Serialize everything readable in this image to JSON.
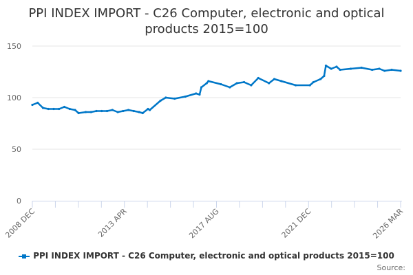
{
  "chart_data": {
    "type": "line",
    "title": "PPI INDEX IMPORT - C26 Computer, electronic and optical products 2015=100",
    "xlabel": "",
    "ylabel": "",
    "ylim": [
      0,
      150
    ],
    "yticks": [
      "0",
      "50",
      "100",
      "150"
    ],
    "xlim": [
      "2008-12",
      "2026-03"
    ],
    "xticks": [
      "2008 DEC",
      "2013 APR",
      "2017 AUG",
      "2021 DEC",
      "2026 MAR"
    ],
    "grid": true,
    "legend_position": "bottom",
    "color": "#0077c8",
    "series": [
      {
        "name": "PPI INDEX IMPORT - C26 Computer, electronic and optical products 2015=100",
        "x": [
          "2008-12",
          "2009-03",
          "2009-06",
          "2009-09",
          "2009-12",
          "2010-03",
          "2010-06",
          "2010-09",
          "2010-12",
          "2011-02",
          "2011-06",
          "2011-09",
          "2011-12",
          "2012-03",
          "2012-06",
          "2012-09",
          "2012-12",
          "2013-03",
          "2013-06",
          "2013-09",
          "2013-12",
          "2014-02",
          "2014-05",
          "2014-06",
          "2014-12",
          "2015-03",
          "2015-08",
          "2016-02",
          "2016-08",
          "2016-10",
          "2016-11",
          "2017-02",
          "2017-03",
          "2017-10",
          "2018-03",
          "2018-07",
          "2018-11",
          "2019-03",
          "2019-07",
          "2020-01",
          "2020-04",
          "2020-08",
          "2021-04",
          "2021-12",
          "2022-02",
          "2022-06",
          "2022-08",
          "2022-09",
          "2022-12",
          "2023-03",
          "2023-05",
          "2023-11",
          "2024-05",
          "2024-11",
          "2025-03",
          "2025-06",
          "2025-10",
          "2026-03"
        ],
        "values": [
          93,
          95,
          90,
          89,
          89,
          89,
          91,
          89,
          88,
          85,
          86,
          86,
          87,
          87,
          87,
          88,
          86,
          87,
          88,
          87,
          86,
          85,
          89,
          88,
          97,
          100,
          99,
          101,
          104,
          103,
          110,
          114,
          116,
          113,
          110,
          114,
          115,
          112,
          119,
          114,
          118,
          116,
          112,
          112,
          115,
          118,
          121,
          131,
          128,
          130,
          127,
          128,
          129,
          127,
          128,
          126,
          127,
          126
        ]
      }
    ]
  },
  "legend": {
    "label": "PPI INDEX IMPORT - C26 Computer, electronic and optical products 2015=100"
  },
  "source": "Source:"
}
